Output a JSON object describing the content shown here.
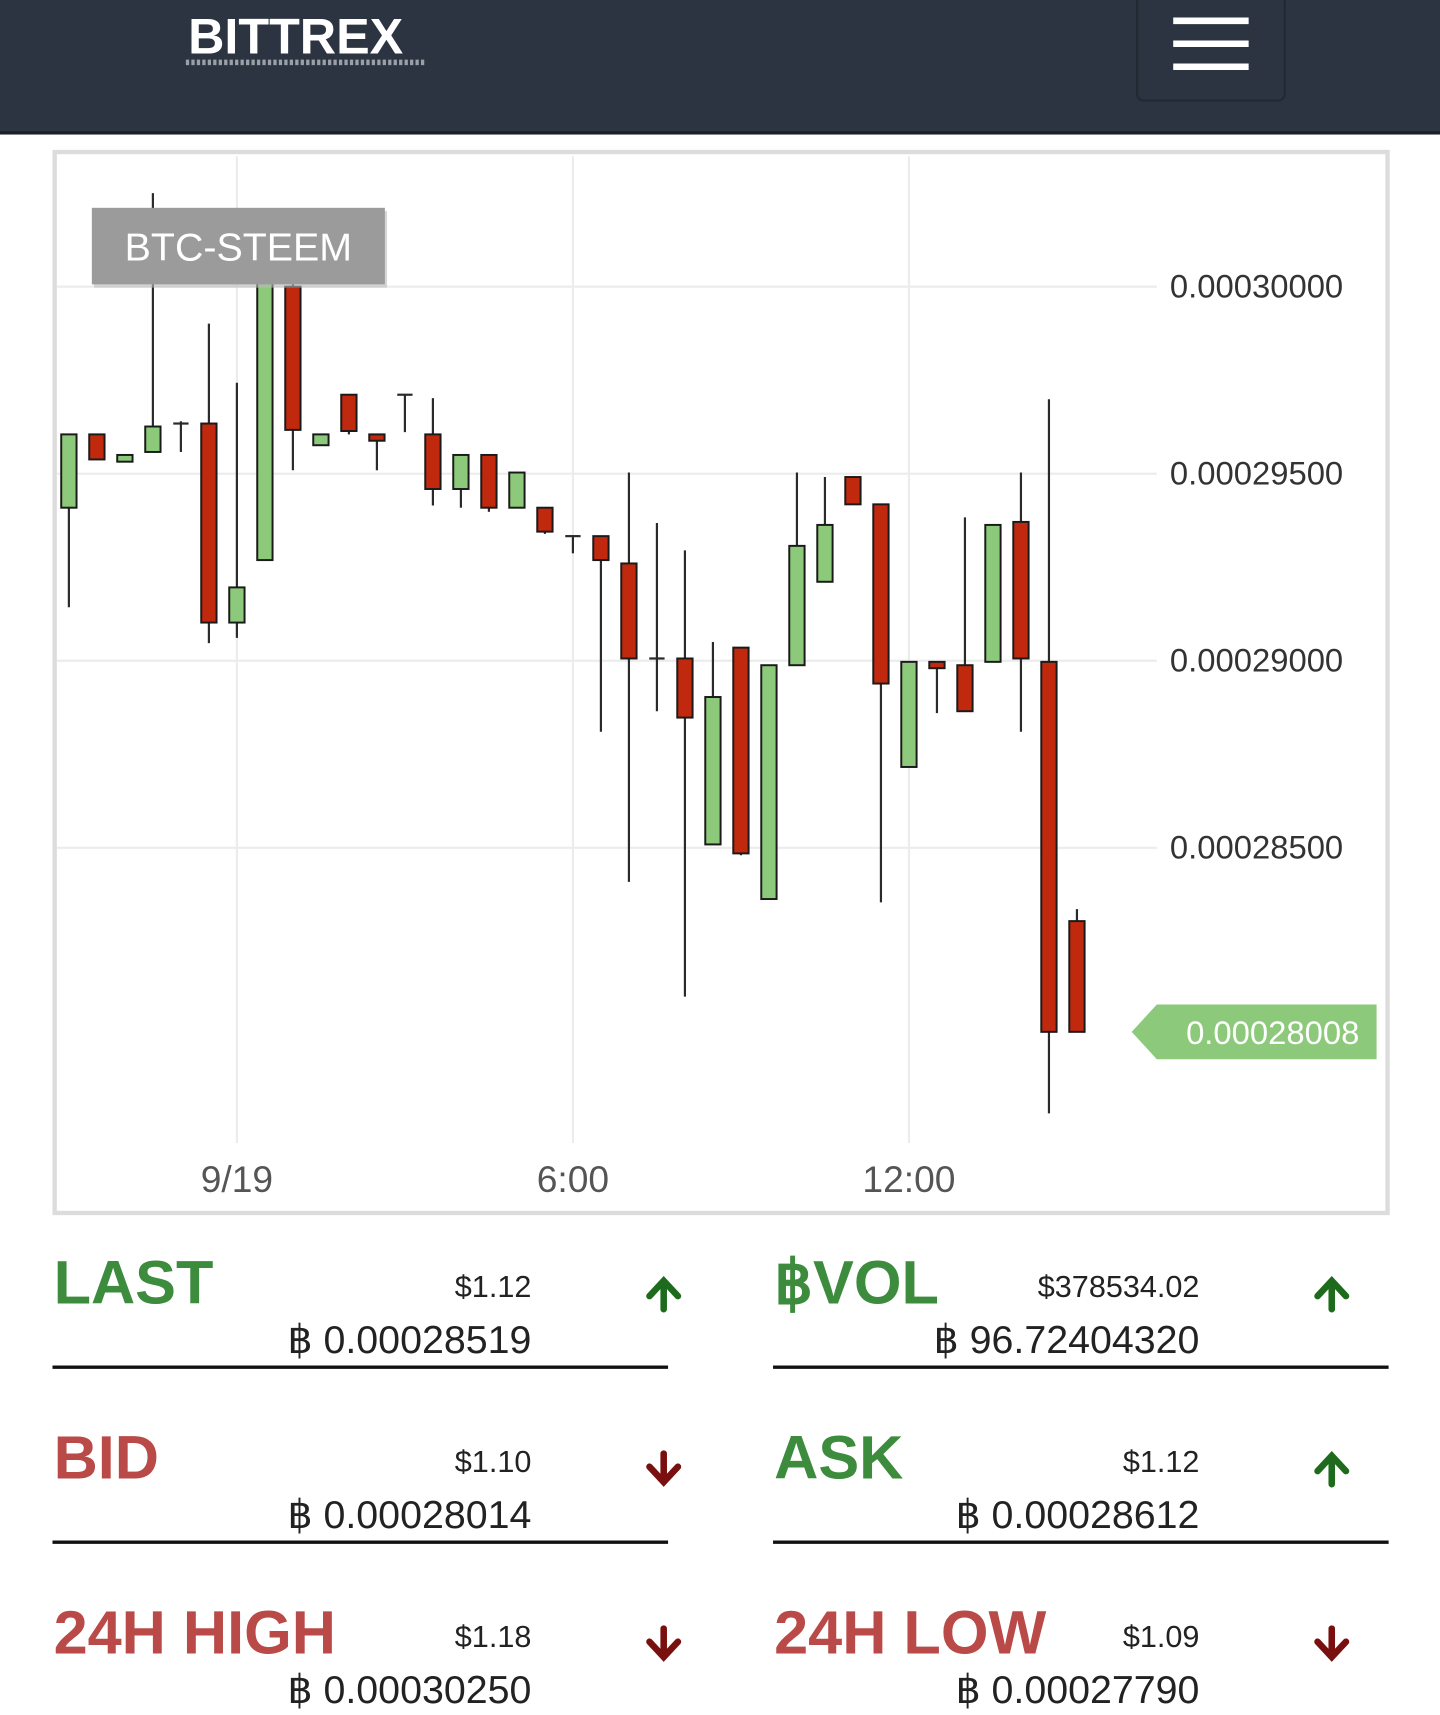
{
  "header": {
    "brand": "BITTREX"
  },
  "chart_data": {
    "type": "candlestick",
    "title": "BTC-STEEM",
    "categories": [
      null,
      null,
      null,
      null,
      null,
      null,
      "9/19",
      null,
      null,
      null,
      null,
      null,
      null,
      null,
      null,
      null,
      null,
      null,
      "6:00",
      null,
      null,
      null,
      null,
      null,
      null,
      null,
      null,
      null,
      null,
      null,
      "12:00",
      null,
      null,
      null,
      null,
      null,
      null
    ],
    "open": [
      0.00029409,
      0.00029605,
      0.00029532,
      0.00029558,
      0.00029634,
      0.00029634,
      0.00029102,
      0.00029269,
      0.0003,
      0.00029576,
      0.00029711,
      0.00029605,
      0.00029711,
      0.00029605,
      0.00029459,
      0.0002955,
      0.00029409,
      0.00029409,
      0.00029333,
      0.00029333,
      0.0002926,
      0.00029006,
      0.00029006,
      0.00028509,
      0.00029035,
      0.00028363,
      0.00028988,
      0.00029211,
      0.00029491,
      0.00029418,
      0.00028716,
      0.00028997,
      0.00028988,
      0.00028997,
      0.00029371,
      0.00028997,
      0.00028304
    ],
    "high": [
      0.00029605,
      0.00029605,
      0.0002955,
      0.0003025,
      0.0002964,
      0.00029901,
      0.00029743,
      0.00030035,
      0.0003002,
      0.00029605,
      0.00029711,
      0.00029605,
      0.00029711,
      0.00029702,
      0.0002955,
      0.0002955,
      0.00029503,
      0.00029409,
      0.00029333,
      0.00029333,
      0.00029503,
      0.00029368,
      0.00029295,
      0.0002905,
      0.00029035,
      0.00028988,
      0.00029503,
      0.00029491,
      0.00029491,
      0.00029418,
      0.00028997,
      0.00028997,
      0.00029383,
      0.00029363,
      0.00029503,
      0.00029699,
      0.00028336
    ],
    "low": [
      0.00029143,
      0.00029538,
      0.00029532,
      0.00029558,
      0.00029558,
      0.00029047,
      0.00029061,
      0.00029269,
      0.00029509,
      0.00029576,
      0.00029605,
      0.00029509,
      0.00029611,
      0.00029415,
      0.00029409,
      0.00029398,
      0.00029409,
      0.00029339,
      0.00029287,
      0.0002881,
      0.00028409,
      0.00028865,
      0.00028102,
      0.00028509,
      0.0002848,
      0.00028363,
      0.00028988,
      0.00029211,
      0.00029418,
      0.00028354,
      0.00028716,
      0.0002886,
      0.00028865,
      0.00028997,
      0.0002881,
      0.0002779,
      0.00028008
    ],
    "close": [
      0.00029605,
      0.00029538,
      0.0002955,
      0.00029626,
      0.00029634,
      0.00029102,
      0.00029196,
      0.00030035,
      0.00029617,
      0.00029605,
      0.00029614,
      0.00029588,
      0.00029711,
      0.00029459,
      0.0002955,
      0.00029409,
      0.00029503,
      0.00029345,
      0.00029333,
      0.00029269,
      0.00029006,
      0.00029006,
      0.00028848,
      0.00028903,
      0.00028485,
      0.00028988,
      0.00029307,
      0.00029363,
      0.00029418,
      0.00028939,
      0.00028997,
      0.0002898,
      0.00028865,
      0.00029363,
      0.00029006,
      0.00028008,
      0.00028008
    ],
    "up_color": "#8cc97a",
    "down_color": "#c1290e",
    "ylim": [
      0.00027711,
      0.00030348
    ],
    "yticks": [
      {
        "value": 0.0003,
        "label": "0.00030000"
      },
      {
        "value": 0.000295,
        "label": "0.00029500"
      },
      {
        "value": 0.00029,
        "label": "0.00029000"
      },
      {
        "value": 0.000285,
        "label": "0.00028500"
      }
    ],
    "grid": true,
    "last_price": 0.00028008,
    "last_price_color": "#8cc97a"
  },
  "stats": [
    {
      "label": "LAST",
      "usd": "$1.12",
      "btc": "฿ 0.00028519",
      "direction": "up",
      "color": "#3d8b3d",
      "arrow_color": "#1e6b1e"
    },
    {
      "label": "฿VOL",
      "usd": "$378534.02",
      "btc": "฿ 96.72404320",
      "direction": "up",
      "color": "#3d8b3d",
      "arrow_color": "#1e6b1e"
    },
    {
      "label": "BID",
      "usd": "$1.10",
      "btc": "฿ 0.00028014",
      "direction": "down",
      "color": "#b94a48",
      "arrow_color": "#7a0f0f"
    },
    {
      "label": "ASK",
      "usd": "$1.12",
      "btc": "฿ 0.00028612",
      "direction": "up",
      "color": "#3d8b3d",
      "arrow_color": "#1e6b1e"
    },
    {
      "label": "24H HIGH",
      "usd": "$1.18",
      "btc": "฿ 0.00030250",
      "direction": "down",
      "color": "#b94a48",
      "arrow_color": "#7a0f0f"
    },
    {
      "label": "24H LOW",
      "usd": "$1.09",
      "btc": "฿ 0.00027790",
      "direction": "down",
      "color": "#b94a48",
      "arrow_color": "#7a0f0f"
    }
  ]
}
